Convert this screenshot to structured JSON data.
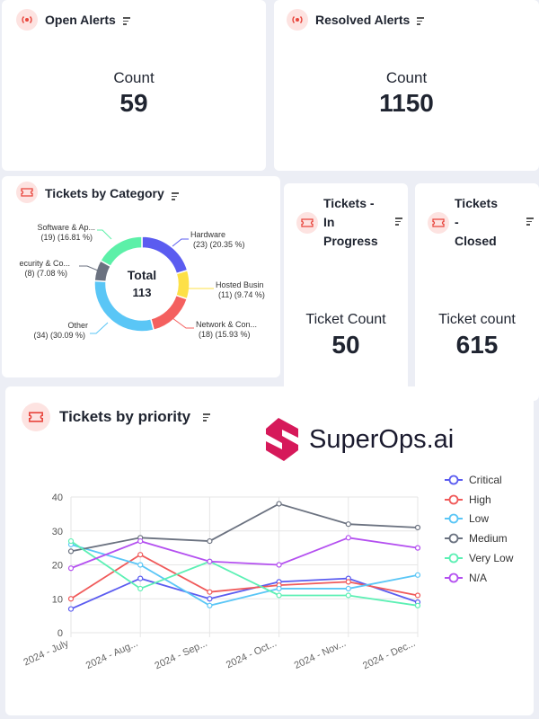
{
  "open_alerts": {
    "title": "Open Alerts",
    "label": "Count",
    "value": "59"
  },
  "resolved_alerts": {
    "title": "Resolved Alerts",
    "label": "Count",
    "value": "1150"
  },
  "tickets_in_progress": {
    "title_lines": [
      "Tickets -",
      "In",
      "Progress"
    ],
    "label": "Ticket Count",
    "value": "50"
  },
  "tickets_closed": {
    "title_lines": [
      "Tickets",
      "-",
      "Closed"
    ],
    "label": "Ticket count",
    "value": "615"
  },
  "logo": {
    "text": "SuperOps.ai",
    "color": "#d6195a"
  },
  "colors": {
    "accent_icon": "#e8453c",
    "icon_bg": "#fde3e1",
    "card": "#ffffff",
    "page": "#eceef5"
  },
  "category": {
    "title": "Tickets by Category",
    "center_label": "Total",
    "center_value": "113",
    "labels": [
      {
        "name": "Hardware",
        "detail": "(23) (20.35 %)"
      },
      {
        "name": "Hosted Busin",
        "detail": "(11) (9.74 %)"
      },
      {
        "name": "Network & Con...",
        "detail": "(18) (15.93 %)"
      },
      {
        "name": "Other",
        "detail": "(34) (30.09 %)"
      },
      {
        "name": "ecurity & Co...",
        "detail": "(8) (7.08 %)"
      },
      {
        "name": "Software & Ap...",
        "detail": "(19) (16.81 %)"
      }
    ]
  },
  "priority": {
    "title": "Tickets by priority"
  },
  "chart_data": [
    {
      "type": "pie",
      "title": "Tickets by Category",
      "categories": [
        "Hardware",
        "Hosted Busin",
        "Network & Con...",
        "Other",
        "ecurity & Co...",
        "Software & Ap..."
      ],
      "values": [
        23,
        11,
        18,
        34,
        8,
        19
      ],
      "percentages": [
        20.35,
        9.74,
        15.93,
        30.09,
        7.08,
        16.81
      ],
      "total": 113,
      "colors": [
        "#5b5cf0",
        "#fde047",
        "#f4605f",
        "#5ac6f6",
        "#6b7280",
        "#5cf0a8"
      ]
    },
    {
      "type": "line",
      "title": "Tickets by priority",
      "categories": [
        "2024 - July",
        "2024 - Aug...",
        "2024 - Sep...",
        "2024 - Oct...",
        "2024 - Nov...",
        "2024 - Dec..."
      ],
      "ylim": [
        0,
        40
      ],
      "yticks": [
        0,
        10,
        20,
        30,
        40
      ],
      "grid": true,
      "legend": "right",
      "series": [
        {
          "name": "Critical",
          "color": "#5b5cf0",
          "values": [
            7,
            16,
            10,
            15,
            16,
            9
          ]
        },
        {
          "name": "High",
          "color": "#f05a5a",
          "values": [
            10,
            23,
            12,
            14,
            15,
            11
          ]
        },
        {
          "name": "Low",
          "color": "#5ac6f6",
          "values": [
            26,
            20,
            8,
            13,
            13,
            17
          ]
        },
        {
          "name": "Medium",
          "color": "#6b7280",
          "values": [
            24,
            28,
            27,
            38,
            32,
            31
          ]
        },
        {
          "name": "Very Low",
          "color": "#5cf0b4",
          "values": [
            27,
            13,
            21,
            11,
            11,
            8
          ]
        },
        {
          "name": "N/A",
          "color": "#b450f0",
          "values": [
            19,
            27,
            21,
            20,
            28,
            25
          ]
        }
      ]
    }
  ]
}
